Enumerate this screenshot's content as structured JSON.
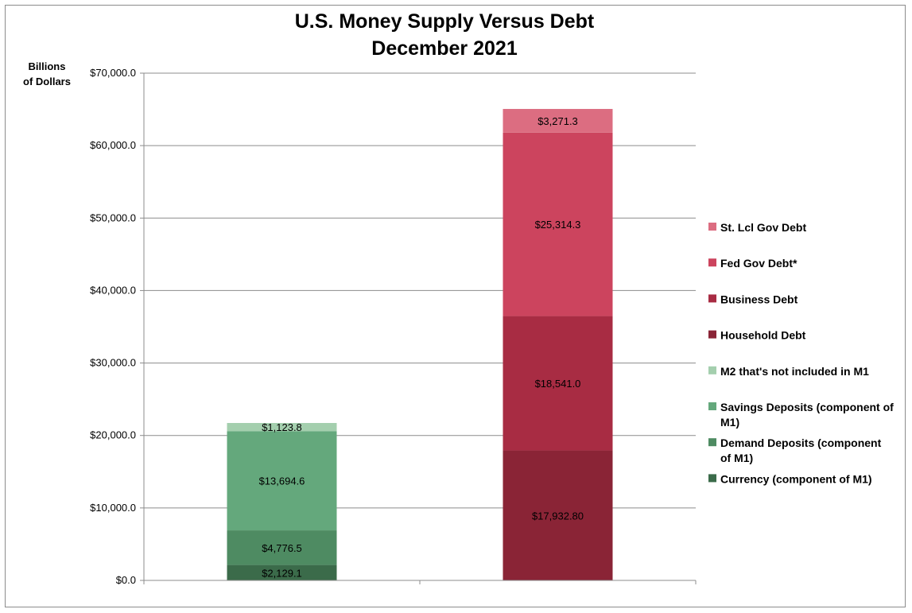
{
  "chart_data": {
    "type": "bar",
    "stacked": true,
    "title": [
      "U.S. Money Supply Versus Debt",
      "December 2021"
    ],
    "ylabel": [
      "Billions",
      "of Dollars"
    ],
    "ylim": [
      0,
      70000
    ],
    "yticks": [
      {
        "value": 0,
        "label": "$0.0"
      },
      {
        "value": 10000,
        "label": "$10,000.0"
      },
      {
        "value": 20000,
        "label": "$20,000.0"
      },
      {
        "value": 30000,
        "label": "$30,000.0"
      },
      {
        "value": 40000,
        "label": "$40,000.0"
      },
      {
        "value": 50000,
        "label": "$50,000.0"
      },
      {
        "value": 60000,
        "label": "$60,000.0"
      },
      {
        "value": 70000,
        "label": "$70,000.0"
      }
    ],
    "grid": true,
    "legend_position": "right",
    "bars": [
      {
        "segments": [
          {
            "name": "Currency (component of M1)",
            "value": 2129.1,
            "label": "$2,129.1",
            "color": "#3b6b4a"
          },
          {
            "name": "Demand Deposits (component of M1)",
            "value": 4776.5,
            "label": "$4,776.5",
            "color": "#4e8b62"
          },
          {
            "name": "Savings Deposits (component of M1)",
            "value": 13694.6,
            "label": "$13,694.6",
            "color": "#64a87c"
          },
          {
            "name": "M2 that's not included in M1",
            "value": 1123.8,
            "label": "$1,123.8",
            "color": "#a4cfae"
          }
        ]
      },
      {
        "segments": [
          {
            "name": "Household Debt",
            "value": 17932.8,
            "label": "$17,932.80",
            "color": "#8a2436"
          },
          {
            "name": "Business Debt",
            "value": 18541.0,
            "label": "$18,541.0",
            "color": "#a82c43"
          },
          {
            "name": "Fed Gov Debt*",
            "value": 25314.3,
            "label": "$25,314.3",
            "color": "#cc445e"
          },
          {
            "name": "St. Lcl Gov Debt",
            "value": 3271.3,
            "label": "$3,271.3",
            "color": "#dc6d81"
          }
        ]
      }
    ],
    "legend": [
      {
        "label": [
          "St. Lcl Gov Debt"
        ],
        "color": "#dc6d81"
      },
      {
        "label": [
          "Fed Gov Debt*"
        ],
        "color": "#cc445e"
      },
      {
        "label": [
          "Business Debt"
        ],
        "color": "#a82c43"
      },
      {
        "label": [
          "Household Debt"
        ],
        "color": "#8a2436"
      },
      {
        "label": [
          "M2 that's not included in M1"
        ],
        "color": "#a4cfae"
      },
      {
        "label": [
          "Savings Deposits (component of",
          "M1)"
        ],
        "color": "#64a87c"
      },
      {
        "label": [
          "Demand Deposits (component",
          "of M1)"
        ],
        "color": "#4e8b62"
      },
      {
        "label": [
          "Currency (component of M1)"
        ],
        "color": "#3b6b4a"
      }
    ]
  }
}
